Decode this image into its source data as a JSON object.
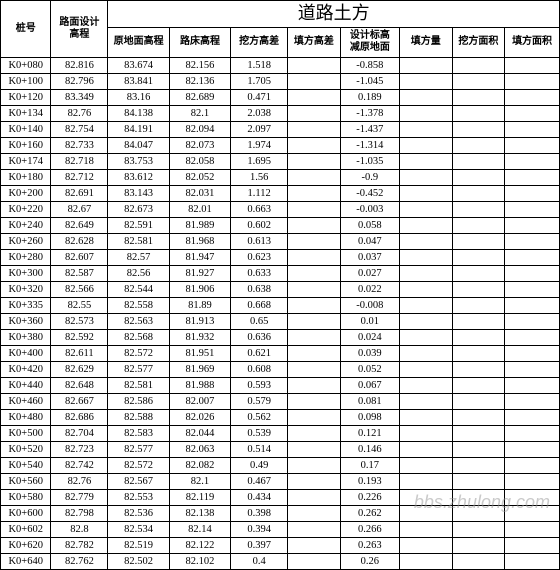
{
  "title": "道路土方",
  "watermark": "bbs.zhulong.com",
  "headers": [
    "桩号",
    "路面设计\n高程",
    "原地面高程",
    "路床高程",
    "挖方高差",
    "填方高差",
    "设计标高\n减原地面",
    "填方量",
    "挖方面积",
    "填方面积"
  ],
  "rows": [
    [
      "K0+080",
      "82.816",
      "83.674",
      "82.156",
      "1.518",
      "",
      "-0.858",
      "",
      "",
      ""
    ],
    [
      "K0+100",
      "82.796",
      "83.841",
      "82.136",
      "1.705",
      "",
      "-1.045",
      "",
      "",
      ""
    ],
    [
      "K0+120",
      "83.349",
      "83.16",
      "82.689",
      "0.471",
      "",
      "0.189",
      "",
      "",
      ""
    ],
    [
      "K0+134",
      "82.76",
      "84.138",
      "82.1",
      "2.038",
      "",
      "-1.378",
      "",
      "",
      ""
    ],
    [
      "K0+140",
      "82.754",
      "84.191",
      "82.094",
      "2.097",
      "",
      "-1.437",
      "",
      "",
      ""
    ],
    [
      "K0+160",
      "82.733",
      "84.047",
      "82.073",
      "1.974",
      "",
      "-1.314",
      "",
      "",
      ""
    ],
    [
      "K0+174",
      "82.718",
      "83.753",
      "82.058",
      "1.695",
      "",
      "-1.035",
      "",
      "",
      ""
    ],
    [
      "K0+180",
      "82.712",
      "83.612",
      "82.052",
      "1.56",
      "",
      "-0.9",
      "",
      "",
      ""
    ],
    [
      "K0+200",
      "82.691",
      "83.143",
      "82.031",
      "1.112",
      "",
      "-0.452",
      "",
      "",
      ""
    ],
    [
      "K0+220",
      "82.67",
      "82.673",
      "82.01",
      "0.663",
      "",
      "-0.003",
      "",
      "",
      ""
    ],
    [
      "K0+240",
      "82.649",
      "82.591",
      "81.989",
      "0.602",
      "",
      "0.058",
      "",
      "",
      ""
    ],
    [
      "K0+260",
      "82.628",
      "82.581",
      "81.968",
      "0.613",
      "",
      "0.047",
      "",
      "",
      ""
    ],
    [
      "K0+280",
      "82.607",
      "82.57",
      "81.947",
      "0.623",
      "",
      "0.037",
      "",
      "",
      ""
    ],
    [
      "K0+300",
      "82.587",
      "82.56",
      "81.927",
      "0.633",
      "",
      "0.027",
      "",
      "",
      ""
    ],
    [
      "K0+320",
      "82.566",
      "82.544",
      "81.906",
      "0.638",
      "",
      "0.022",
      "",
      "",
      ""
    ],
    [
      "K0+335",
      "82.55",
      "82.558",
      "81.89",
      "0.668",
      "",
      "-0.008",
      "",
      "",
      ""
    ],
    [
      "K0+360",
      "82.573",
      "82.563",
      "81.913",
      "0.65",
      "",
      "0.01",
      "",
      "",
      ""
    ],
    [
      "K0+380",
      "82.592",
      "82.568",
      "81.932",
      "0.636",
      "",
      "0.024",
      "",
      "",
      ""
    ],
    [
      "K0+400",
      "82.611",
      "82.572",
      "81.951",
      "0.621",
      "",
      "0.039",
      "",
      "",
      ""
    ],
    [
      "K0+420",
      "82.629",
      "82.577",
      "81.969",
      "0.608",
      "",
      "0.052",
      "",
      "",
      ""
    ],
    [
      "K0+440",
      "82.648",
      "82.581",
      "81.988",
      "0.593",
      "",
      "0.067",
      "",
      "",
      ""
    ],
    [
      "K0+460",
      "82.667",
      "82.586",
      "82.007",
      "0.579",
      "",
      "0.081",
      "",
      "",
      ""
    ],
    [
      "K0+480",
      "82.686",
      "82.588",
      "82.026",
      "0.562",
      "",
      "0.098",
      "",
      "",
      ""
    ],
    [
      "K0+500",
      "82.704",
      "82.583",
      "82.044",
      "0.539",
      "",
      "0.121",
      "",
      "",
      ""
    ],
    [
      "K0+520",
      "82.723",
      "82.577",
      "82.063",
      "0.514",
      "",
      "0.146",
      "",
      "",
      ""
    ],
    [
      "K0+540",
      "82.742",
      "82.572",
      "82.082",
      "0.49",
      "",
      "0.17",
      "",
      "",
      ""
    ],
    [
      "K0+560",
      "82.76",
      "82.567",
      "82.1",
      "0.467",
      "",
      "0.193",
      "",
      "",
      ""
    ],
    [
      "K0+580",
      "82.779",
      "82.553",
      "82.119",
      "0.434",
      "",
      "0.226",
      "",
      "",
      ""
    ],
    [
      "K0+600",
      "82.798",
      "82.536",
      "82.138",
      "0.398",
      "",
      "0.262",
      "",
      "",
      ""
    ],
    [
      "K0+602",
      "82.8",
      "82.534",
      "82.14",
      "0.394",
      "",
      "0.266",
      "",
      "",
      ""
    ],
    [
      "K0+620",
      "82.782",
      "82.519",
      "82.122",
      "0.397",
      "",
      "0.263",
      "",
      "",
      ""
    ],
    [
      "K0+640",
      "82.762",
      "82.502",
      "82.102",
      "0.4",
      "",
      "0.26",
      "",
      "",
      ""
    ]
  ]
}
